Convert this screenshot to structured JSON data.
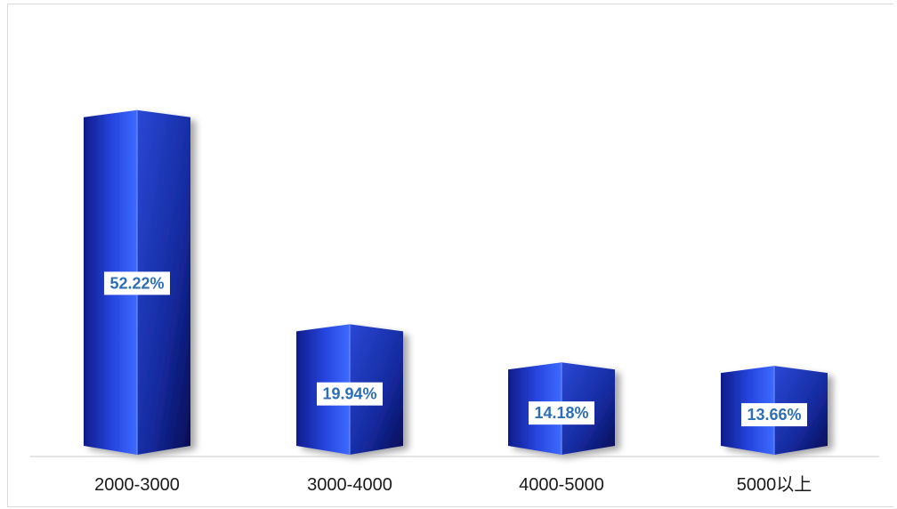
{
  "chart_data": {
    "type": "bar",
    "categories": [
      "2000-3000",
      "3000-4000",
      "4000-5000",
      "5000以上"
    ],
    "values": [
      52.22,
      19.94,
      14.18,
      13.66
    ],
    "value_labels": [
      "52.22%",
      "19.94%",
      "14.18%",
      "13.66%"
    ],
    "unit": "%",
    "ylim": [
      0,
      55
    ],
    "grid": false,
    "legend": "none",
    "colors": {
      "bar_light": "#3d6bff",
      "bar_mid": "#1f3fc9",
      "bar_dark": "#0a1466",
      "label_text": "#2d6fb7",
      "baseline": "#c8c8c8"
    }
  }
}
